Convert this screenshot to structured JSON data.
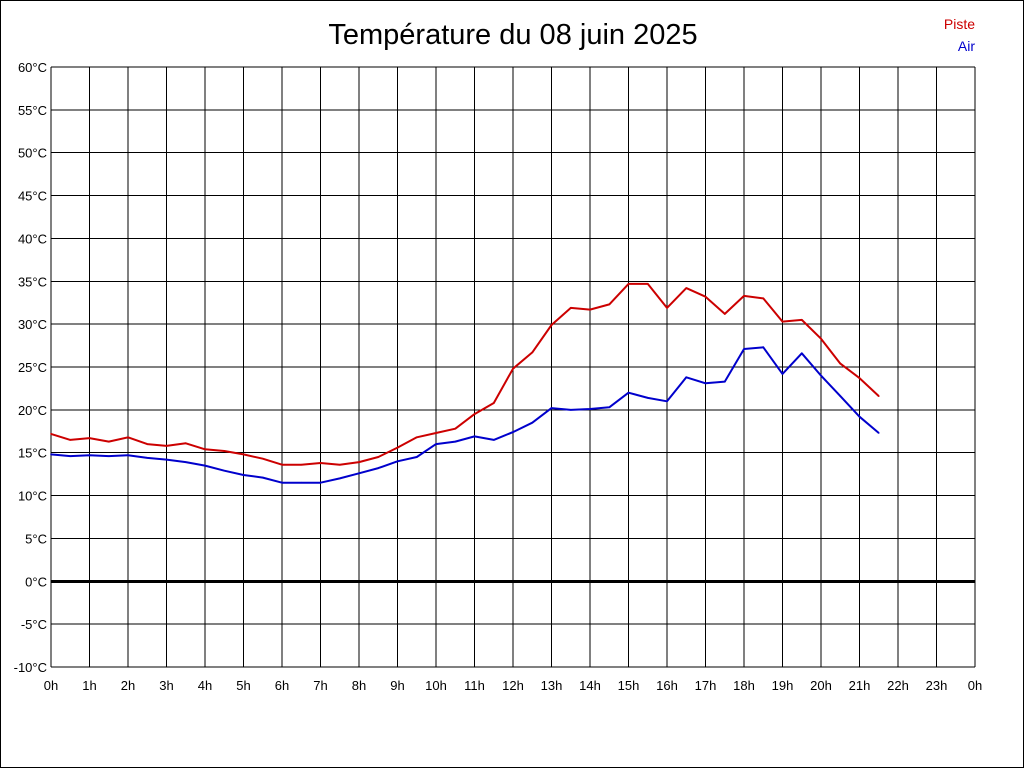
{
  "chart_data": {
    "type": "line",
    "title": "Température du 08 juin 2025",
    "xlabel": "",
    "ylabel": "",
    "x_tick_labels": [
      "0h",
      "1h",
      "2h",
      "3h",
      "4h",
      "5h",
      "6h",
      "7h",
      "8h",
      "9h",
      "10h",
      "11h",
      "12h",
      "13h",
      "14h",
      "15h",
      "16h",
      "17h",
      "18h",
      "19h",
      "20h",
      "21h",
      "22h",
      "23h",
      "0h"
    ],
    "y_tick_labels": [
      "60°C",
      "55°C",
      "50°C",
      "45°C",
      "40°C",
      "35°C",
      "30°C",
      "25°C",
      "20°C",
      "15°C",
      "10°C",
      "5°C",
      "0°C",
      "-5°C",
      "-10°C"
    ],
    "xlim": [
      0,
      24
    ],
    "ylim": [
      -10,
      60
    ],
    "grid": true,
    "legend_position": "top-right",
    "series": [
      {
        "name": "Piste",
        "color": "#cc0000",
        "x": [
          0,
          0.5,
          1,
          1.5,
          2,
          2.5,
          3,
          3.5,
          4,
          4.5,
          5,
          5.5,
          6,
          6.5,
          7,
          7.5,
          8,
          8.5,
          9,
          9.5,
          10,
          10.5,
          11,
          11.5,
          12,
          12.5,
          13,
          13.5,
          14,
          14.5,
          15,
          15.5,
          16,
          16.5,
          17,
          17.5,
          18,
          18.5,
          19,
          19.5,
          20,
          20.5,
          21,
          21.5
        ],
        "values": [
          17.2,
          16.5,
          16.7,
          16.3,
          16.8,
          16.0,
          15.8,
          16.1,
          15.4,
          15.2,
          14.8,
          14.3,
          13.6,
          13.6,
          13.8,
          13.6,
          13.9,
          14.5,
          15.6,
          16.8,
          17.3,
          17.8,
          19.5,
          20.8,
          24.8,
          26.7,
          29.9,
          31.9,
          31.7,
          32.3,
          34.7,
          34.7,
          31.9,
          34.2,
          33.2,
          31.2,
          33.3,
          33.0,
          30.3,
          30.5,
          28.3,
          25.4,
          23.7,
          21.6
        ]
      },
      {
        "name": "Air",
        "color": "#0000cc",
        "x": [
          0,
          0.5,
          1,
          1.5,
          2,
          2.5,
          3,
          3.5,
          4,
          4.5,
          5,
          5.5,
          6,
          6.5,
          7,
          7.5,
          8,
          8.5,
          9,
          9.5,
          10,
          10.5,
          11,
          11.5,
          12,
          12.5,
          13,
          13.5,
          14,
          14.5,
          15,
          15.5,
          16,
          16.5,
          17,
          17.5,
          18,
          18.5,
          19,
          19.5,
          20,
          20.5,
          21,
          21.5
        ],
        "values": [
          14.8,
          14.6,
          14.7,
          14.6,
          14.7,
          14.4,
          14.2,
          13.9,
          13.5,
          12.9,
          12.4,
          12.1,
          11.5,
          11.5,
          11.5,
          12.0,
          12.6,
          13.2,
          14.0,
          14.5,
          16.0,
          16.3,
          16.9,
          16.5,
          17.4,
          18.5,
          20.2,
          20.0,
          20.1,
          20.3,
          22.0,
          21.4,
          21.0,
          23.8,
          23.1,
          23.3,
          27.1,
          27.3,
          24.2,
          26.6,
          24.0,
          21.6,
          19.2,
          17.3
        ]
      }
    ]
  }
}
